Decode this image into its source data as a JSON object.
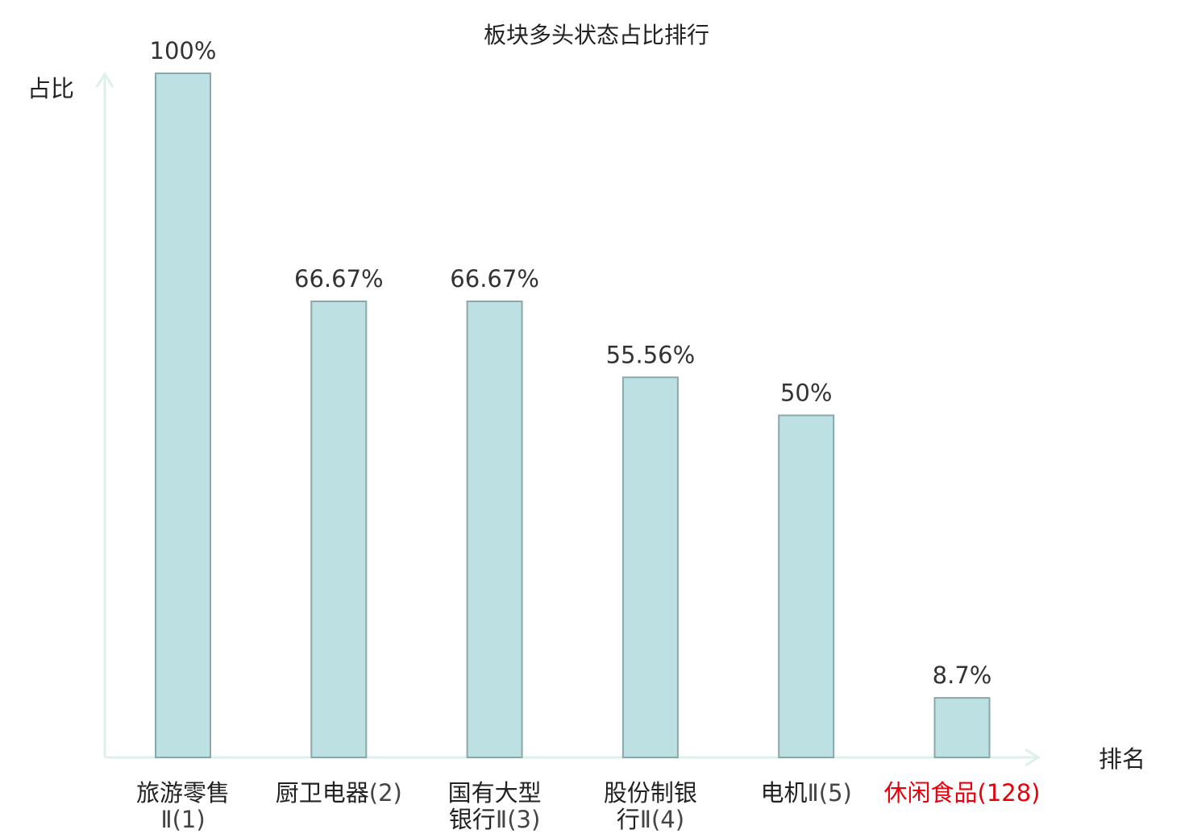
{
  "chart_data": {
    "type": "bar",
    "title": "板块多头状态占比排行",
    "ylabel": "占比",
    "xlabel": "排名",
    "ylim": [
      0,
      100
    ],
    "grid": false,
    "categories": [
      {
        "lines": [
          {
            "name": "旅游零售",
            "suffix": ""
          },
          {
            "name": "",
            "suffix": "Ⅱ(1)"
          }
        ],
        "highlight": false
      },
      {
        "lines": [
          {
            "name": "厨卫电器",
            "suffix": "(2)"
          }
        ],
        "highlight": false
      },
      {
        "lines": [
          {
            "name": "国有大型",
            "suffix": ""
          },
          {
            "name": "银行",
            "suffix": "Ⅱ(3)"
          }
        ],
        "highlight": false
      },
      {
        "lines": [
          {
            "name": "股份制银",
            "suffix": ""
          },
          {
            "name": "行",
            "suffix": "Ⅱ(4)"
          }
        ],
        "highlight": false
      },
      {
        "lines": [
          {
            "name": "电机",
            "suffix": "Ⅱ(5)"
          }
        ],
        "highlight": false
      },
      {
        "lines": [
          {
            "name": "休闲食品",
            "suffix": "(128)"
          }
        ],
        "highlight": true
      }
    ],
    "values": [
      100,
      66.67,
      66.67,
      55.56,
      50,
      8.7
    ],
    "data_labels": [
      "100%",
      "66.67%",
      "66.67%",
      "55.56%",
      "50%",
      "8.7%"
    ],
    "colors": {
      "bar_fill": "#bde0e3",
      "bar_stroke": "#8aa8ab",
      "axis": "#ddf0ec",
      "highlight_text": "#e8000b"
    }
  }
}
